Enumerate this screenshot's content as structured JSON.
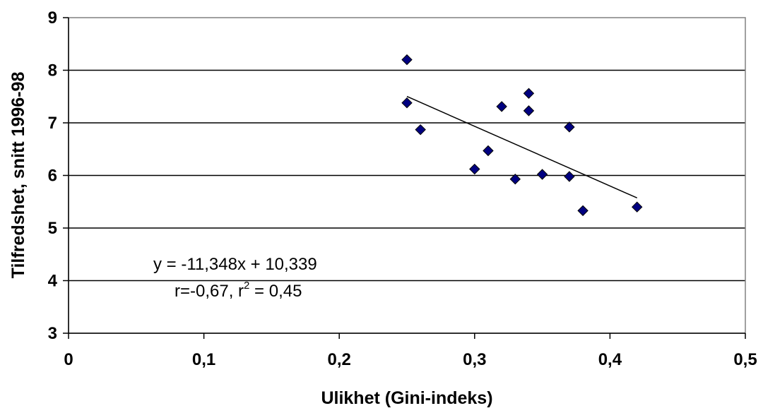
{
  "chart_data": {
    "type": "scatter",
    "title": "",
    "xlabel": "Ulikhet (Gini-indeks)",
    "ylabel": "Tilfredshet, snitt 1996-98",
    "xlim": [
      0,
      0.5
    ],
    "ylim": [
      3,
      9
    ],
    "x_ticks": [
      "0",
      "0,1",
      "0,2",
      "0,3",
      "0,4",
      "0,5"
    ],
    "y_ticks": [
      "3",
      "4",
      "5",
      "6",
      "7",
      "8",
      "9"
    ],
    "grid": "horizontal",
    "legend": "none",
    "marker_color": "#000080",
    "series": [
      {
        "points": [
          {
            "x": 0.25,
            "y": 8.2
          },
          {
            "x": 0.25,
            "y": 7.38
          },
          {
            "x": 0.26,
            "y": 6.87
          },
          {
            "x": 0.3,
            "y": 6.12
          },
          {
            "x": 0.31,
            "y": 6.47
          },
          {
            "x": 0.32,
            "y": 7.31
          },
          {
            "x": 0.33,
            "y": 5.93
          },
          {
            "x": 0.34,
            "y": 7.56
          },
          {
            "x": 0.34,
            "y": 7.23
          },
          {
            "x": 0.35,
            "y": 6.02
          },
          {
            "x": 0.37,
            "y": 6.92
          },
          {
            "x": 0.37,
            "y": 5.98
          },
          {
            "x": 0.38,
            "y": 5.33
          },
          {
            "x": 0.42,
            "y": 5.4
          }
        ]
      }
    ],
    "trendline": {
      "slope": -11.348,
      "intercept": 10.339,
      "x_range": [
        0.25,
        0.42
      ]
    },
    "annotation": {
      "equation": "y = -11,348x + 10,339",
      "stats_prefix": "r=-0,67, r",
      "stats_sup": "2",
      "stats_suffix": " = 0,45"
    }
  }
}
